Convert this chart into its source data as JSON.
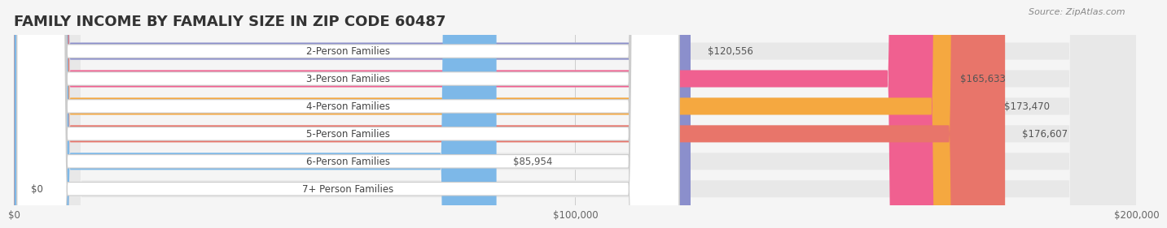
{
  "title": "FAMILY INCOME BY FAMALIY SIZE IN ZIP CODE 60487",
  "source": "Source: ZipAtlas.com",
  "categories": [
    "2-Person Families",
    "3-Person Families",
    "4-Person Families",
    "5-Person Families",
    "6-Person Families",
    "7+ Person Families"
  ],
  "values": [
    120556,
    165633,
    173470,
    176607,
    85954,
    0
  ],
  "bar_colors": [
    "#8b8fcc",
    "#f06090",
    "#f5a840",
    "#e8756a",
    "#7db8e8",
    "#c9b8d8"
  ],
  "value_labels": [
    "$120,556",
    "$165,633",
    "$173,470",
    "$176,607",
    "$85,954",
    "$0"
  ],
  "xlim": [
    0,
    200000
  ],
  "xticks": [
    0,
    100000,
    200000
  ],
  "xticklabels": [
    "$0",
    "$100,000",
    "$200,000"
  ],
  "background_color": "#f5f5f5",
  "bar_bg_color": "#e8e8e8",
  "title_fontsize": 13,
  "label_fontsize": 8.5,
  "value_fontsize": 8.5,
  "source_fontsize": 8
}
